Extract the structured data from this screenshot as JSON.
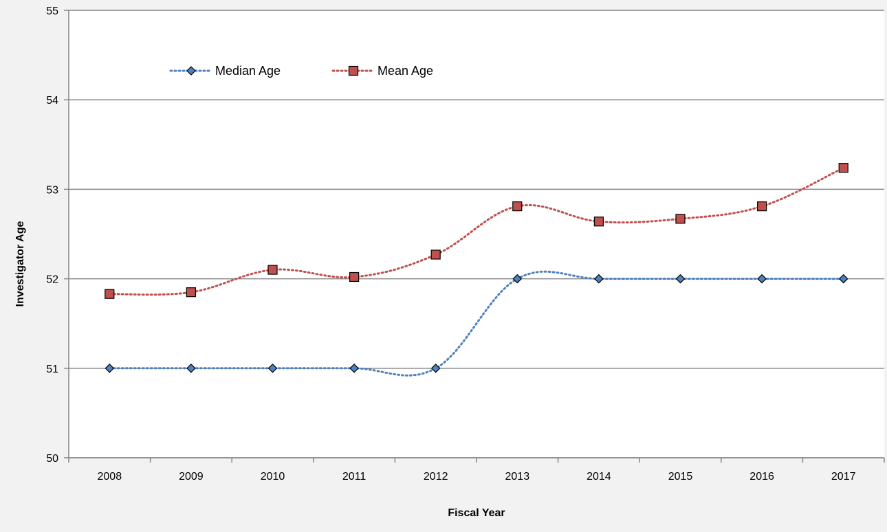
{
  "chart_data": {
    "type": "line",
    "title": "",
    "xlabel": "Fiscal Year",
    "ylabel": "Investigator Age",
    "categories": [
      "2008",
      "2009",
      "2010",
      "2011",
      "2012",
      "2013",
      "2014",
      "2015",
      "2016",
      "2017"
    ],
    "ylim": [
      50,
      55
    ],
    "yticks": [
      50,
      51,
      52,
      53,
      54,
      55
    ],
    "grid": true,
    "legend_position": "top-left",
    "series": [
      {
        "name": "Median Age",
        "values": [
          51,
          51,
          51,
          51,
          51,
          52,
          52,
          52,
          52,
          52
        ],
        "color": "#4f81bd",
        "marker": "diamond",
        "marker_fill": "#4f81bd",
        "line_style": "dotted"
      },
      {
        "name": "Mean Age",
        "values": [
          51.83,
          51.85,
          52.1,
          52.02,
          52.27,
          52.81,
          52.64,
          52.67,
          52.81,
          53.24
        ],
        "color": "#c0504d",
        "marker": "square",
        "marker_fill": "#c0504d",
        "line_style": "dotted"
      }
    ]
  }
}
